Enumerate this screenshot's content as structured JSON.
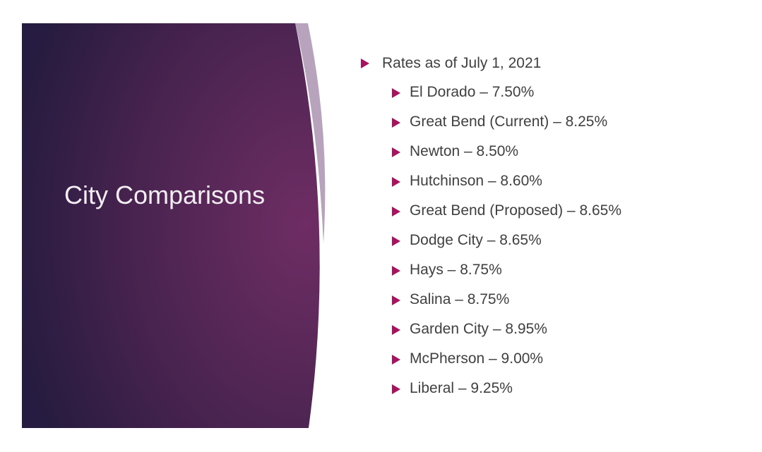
{
  "title": "City Comparisons",
  "bullets": {
    "heading": "Rates as of July 1, 2021",
    "items": [
      "El Dorado – 7.50%",
      "Great Bend (Current) – 8.25%",
      "Newton – 8.50%",
      "Hutchinson – 8.60%",
      "Great Bend (Proposed) – 8.65%",
      "Dodge City – 8.65%",
      "Hays – 8.75%",
      "Salina – 8.75%",
      "Garden City – 8.95%",
      "McPherson – 9.00%",
      "Liberal – 9.25%"
    ]
  }
}
